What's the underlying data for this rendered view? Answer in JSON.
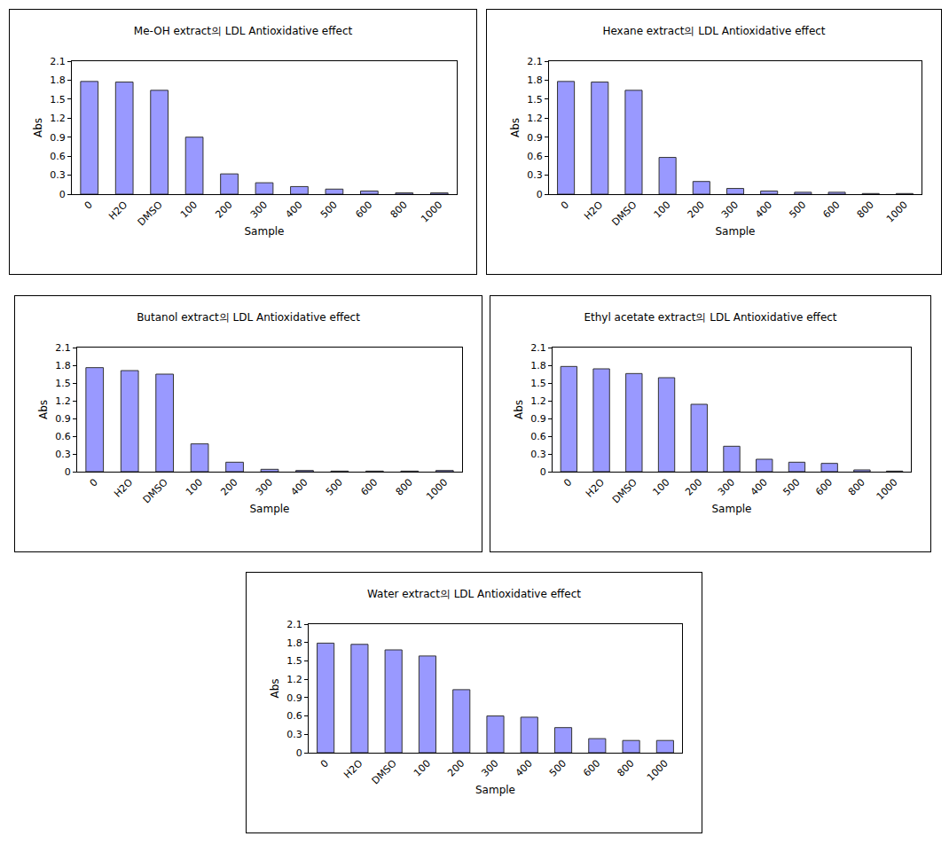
{
  "chart_data": [
    {
      "type": "bar",
      "title": "Me-OH extract의 LDL Antioxidative effect",
      "x_label": "Sample",
      "y_label": "Abs",
      "categories": [
        "0",
        "H2O",
        "DMSO",
        "100",
        "200",
        "300",
        "400",
        "500",
        "600",
        "800",
        "1000"
      ],
      "values": [
        1.78,
        1.77,
        1.64,
        0.9,
        0.32,
        0.18,
        0.12,
        0.08,
        0.05,
        0.02,
        0.02
      ],
      "color": "#9999ff",
      "ylim": [
        0,
        2.1
      ],
      "yticks": [
        0,
        0.3,
        0.6,
        0.9,
        1.2,
        1.5,
        1.8,
        2.1
      ],
      "grid": false
    },
    {
      "type": "bar",
      "title": "Hexane extract의 LDL Antioxidative effect",
      "x_label": "Sample",
      "y_label": "Abs",
      "categories": [
        "0",
        "H2O",
        "DMSO",
        "100",
        "200",
        "300",
        "400",
        "500",
        "600",
        "800",
        "1000"
      ],
      "values": [
        1.78,
        1.77,
        1.64,
        0.58,
        0.2,
        0.09,
        0.05,
        0.03,
        0.03,
        0.01,
        0.01
      ],
      "color": "#9999ff",
      "ylim": [
        0,
        2.1
      ],
      "yticks": [
        0,
        0.3,
        0.6,
        0.9,
        1.2,
        1.5,
        1.8,
        2.1
      ],
      "grid": false
    },
    {
      "type": "bar",
      "title": "Butanol extract의 LDL Antioxidative effect",
      "x_label": "Sample",
      "y_label": "Abs",
      "categories": [
        "0",
        "H2O",
        "DMSO",
        "100",
        "200",
        "300",
        "400",
        "500",
        "600",
        "800",
        "1000"
      ],
      "values": [
        1.76,
        1.71,
        1.65,
        0.47,
        0.16,
        0.04,
        0.02,
        0.01,
        0.01,
        0.01,
        0.02
      ],
      "color": "#9999ff",
      "ylim": [
        0,
        2.1
      ],
      "yticks": [
        0,
        0.3,
        0.6,
        0.9,
        1.2,
        1.5,
        1.8,
        2.1
      ],
      "grid": false
    },
    {
      "type": "bar",
      "title": "Ethyl acetate extract의 LDL Antioxidative effect",
      "x_label": "Sample",
      "y_label": "Abs",
      "categories": [
        "0",
        "H2O",
        "DMSO",
        "100",
        "200",
        "300",
        "400",
        "500",
        "600",
        "800",
        "1000"
      ],
      "values": [
        1.78,
        1.74,
        1.66,
        1.59,
        1.14,
        0.43,
        0.21,
        0.16,
        0.14,
        0.03,
        0.01
      ],
      "color": "#9999ff",
      "ylim": [
        0,
        2.1
      ],
      "yticks": [
        0,
        0.3,
        0.6,
        0.9,
        1.2,
        1.5,
        1.8,
        2.1
      ],
      "grid": false
    },
    {
      "type": "bar",
      "title": "Water extract의 LDL Antioxidative effect",
      "x_label": "Sample",
      "y_label": "Abs",
      "categories": [
        "0",
        "H2O",
        "DMSO",
        "100",
        "200",
        "300",
        "400",
        "500",
        "600",
        "800",
        "1000"
      ],
      "values": [
        1.79,
        1.77,
        1.68,
        1.58,
        1.03,
        0.6,
        0.58,
        0.41,
        0.23,
        0.2,
        0.2
      ],
      "color": "#9999ff",
      "ylim": [
        0,
        2.1
      ],
      "yticks": [
        0,
        0.3,
        0.6,
        0.9,
        1.2,
        1.5,
        1.8,
        2.1
      ],
      "grid": false
    }
  ]
}
